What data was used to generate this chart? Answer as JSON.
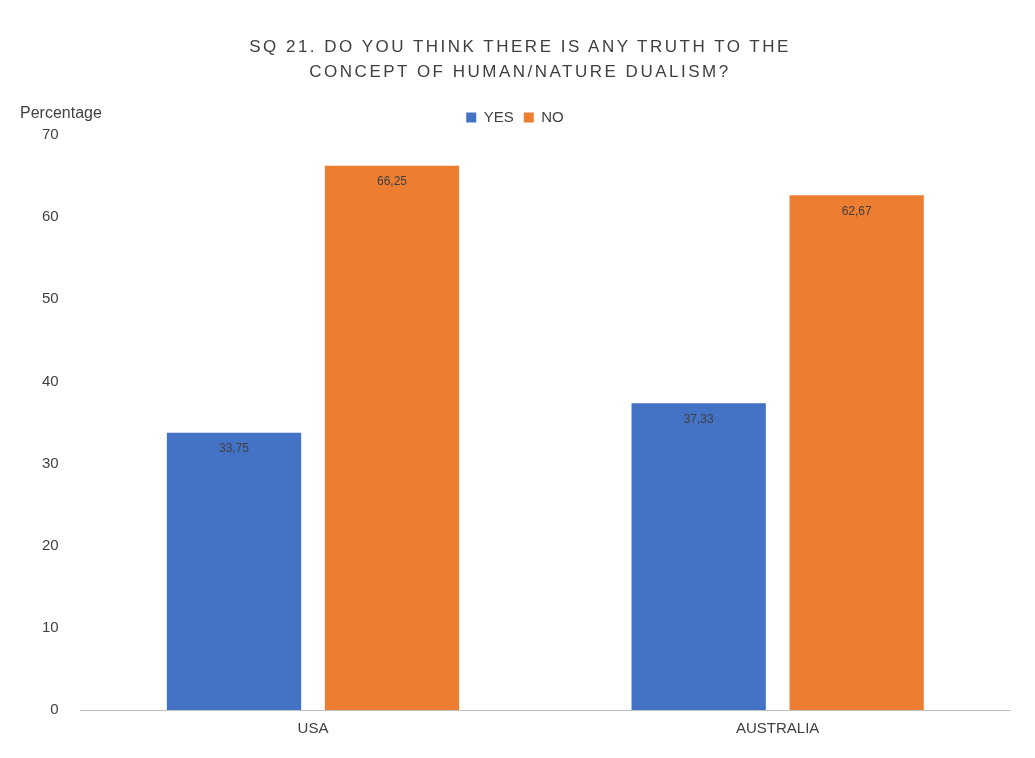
{
  "chart_data": {
    "type": "bar",
    "title": "SQ 21. DO YOU THINK THERE IS ANY TRUTH TO THE CONCEPT OF HUMAN/NATURE DUALISM?",
    "ylabel": "Percentage",
    "categories": [
      "USA",
      "AUSTRALIA"
    ],
    "series": [
      {
        "name": "YES",
        "color": "#4472c4",
        "values": [
          33.75,
          37.33
        ],
        "value_labels": [
          "33,75",
          "37,33"
        ]
      },
      {
        "name": "NO",
        "color": "#ed7d31",
        "values": [
          66.25,
          62.67
        ],
        "value_labels": [
          "66,25",
          "62,67"
        ]
      }
    ],
    "ylim": [
      0,
      70
    ],
    "yticks": [
      0,
      10,
      20,
      30,
      40,
      50,
      60,
      70
    ],
    "grid": false,
    "legend": "top"
  }
}
